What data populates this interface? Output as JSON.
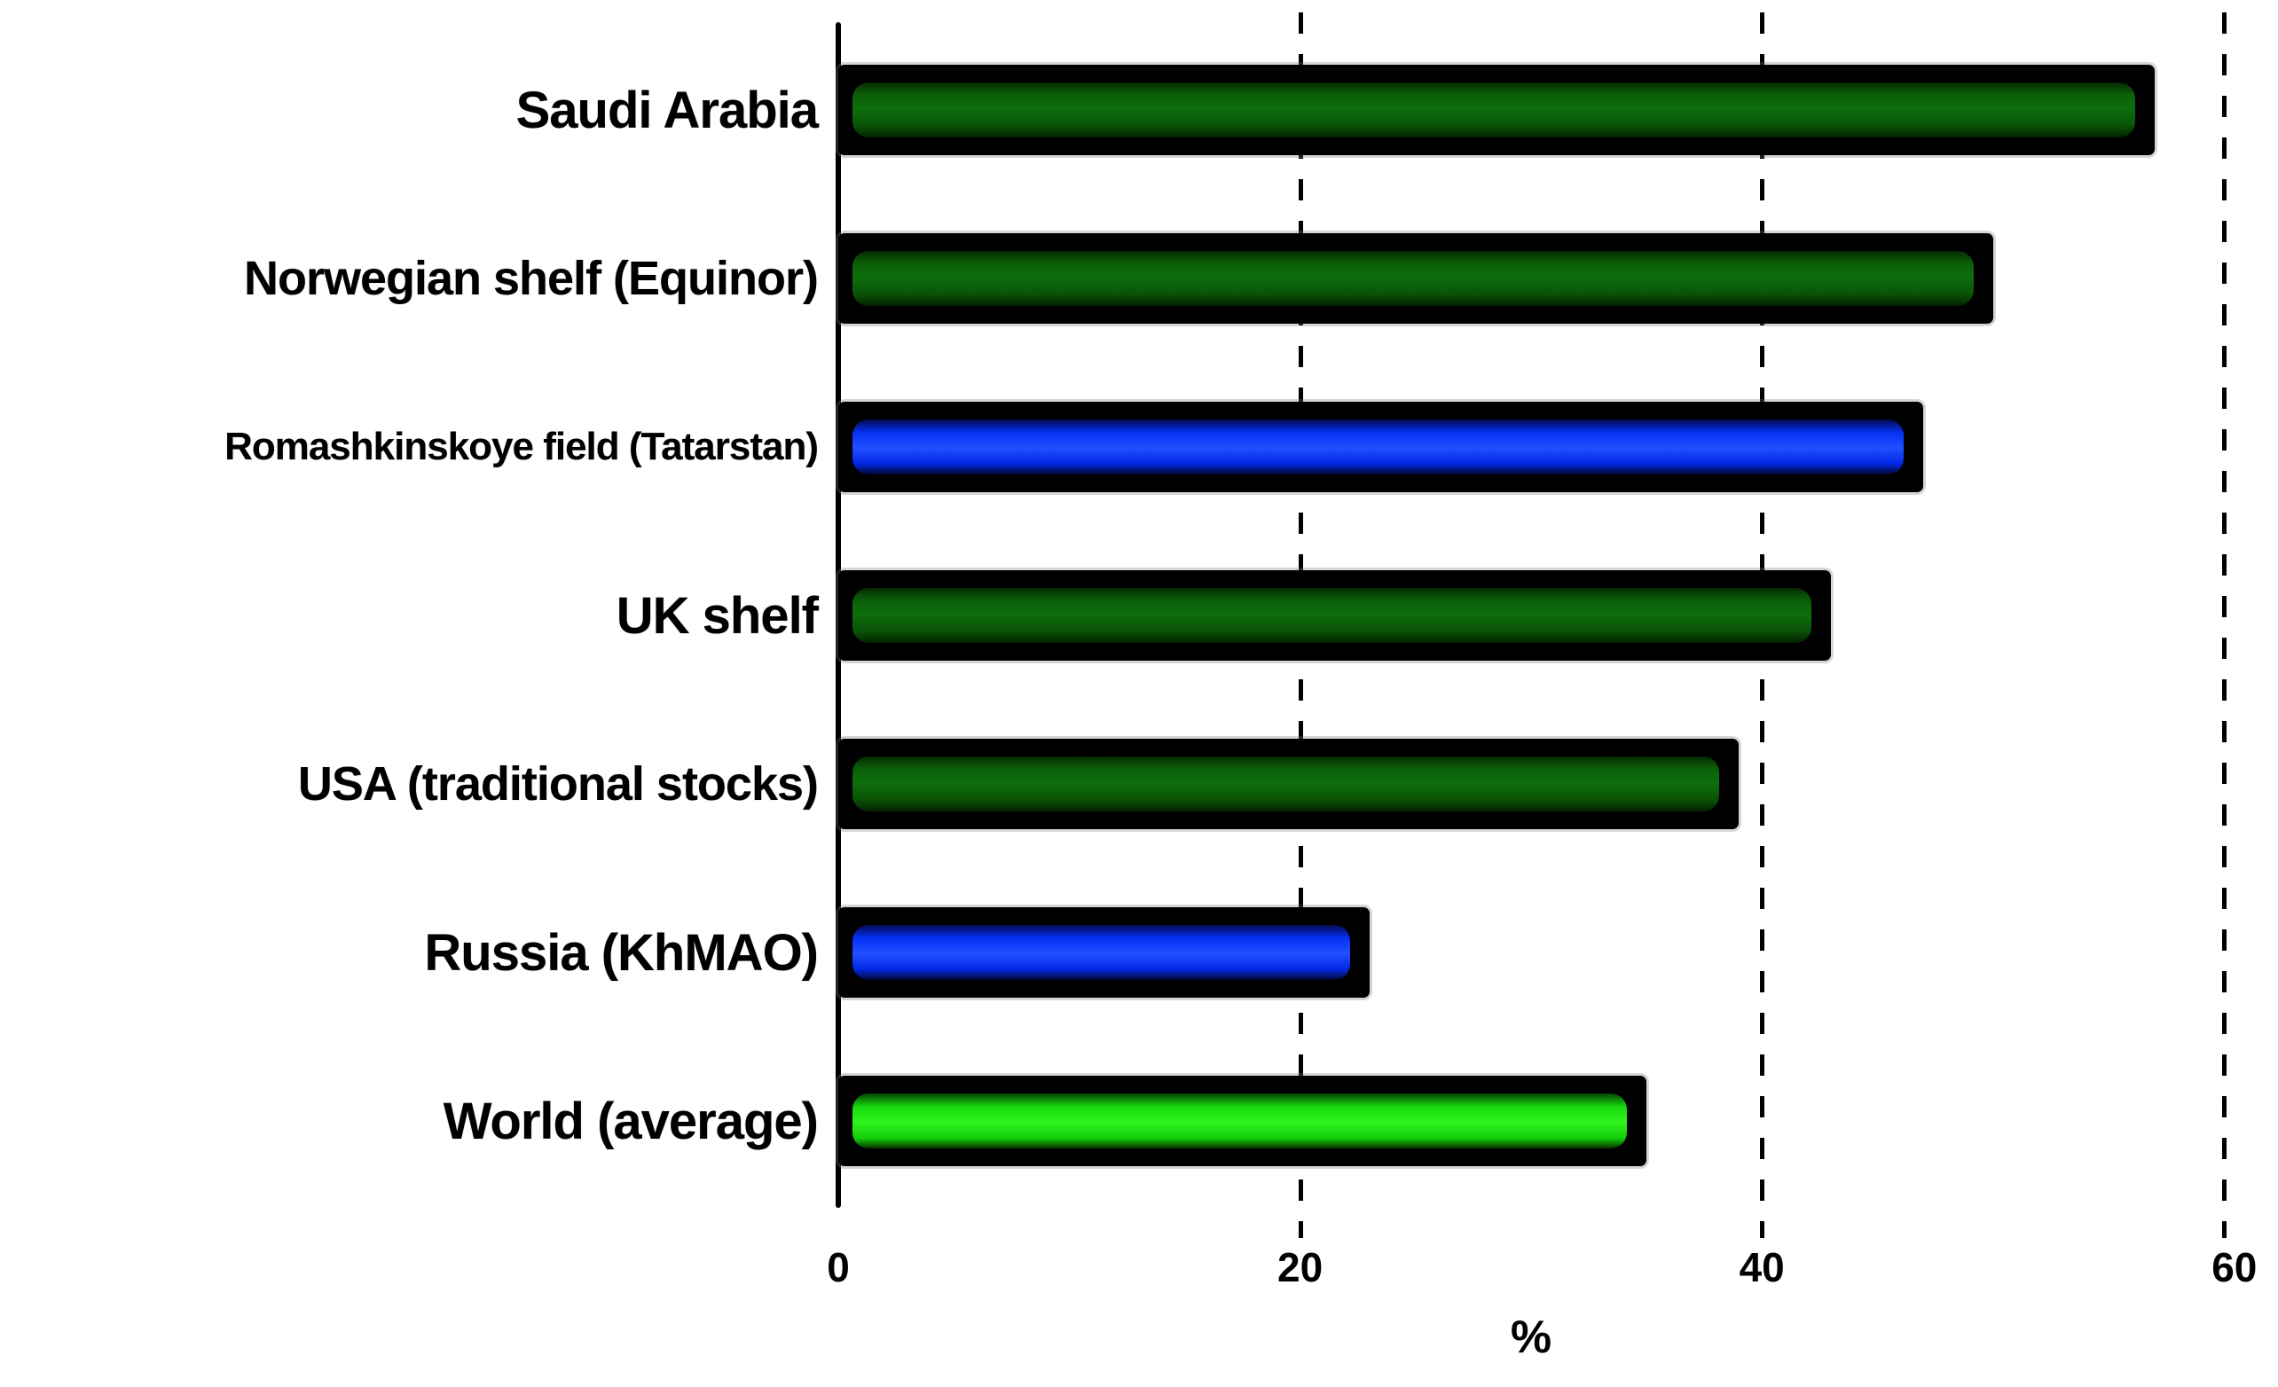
{
  "chart_data": {
    "type": "bar",
    "orientation": "horizontal",
    "title": "",
    "xlabel": "%",
    "categories": [
      "Saudi Arabia",
      "Norwegian shelf (Equinor)",
      "Romashkinskoye field (Tatarstan)",
      "UK shelf",
      "USA (traditional stocks)",
      "Russia (KhMAO)",
      "World (average)"
    ],
    "values": [
      57,
      50,
      47,
      43,
      39,
      23,
      35
    ],
    "bar_colors": [
      "dark_green",
      "dark_green",
      "blue",
      "dark_green",
      "dark_green",
      "blue",
      "bright_green"
    ],
    "colors": {
      "dark_green": "#0d6a0c",
      "blue": "#0d35f5",
      "bright_green": "#24e814",
      "bar_border": "#000000",
      "axis": "#000000"
    },
    "x_ticks": [
      "0",
      "20",
      "40",
      "60"
    ],
    "xlim": [
      0,
      62.4
    ],
    "grid": "dashed-vertical",
    "legend_position": "none"
  }
}
